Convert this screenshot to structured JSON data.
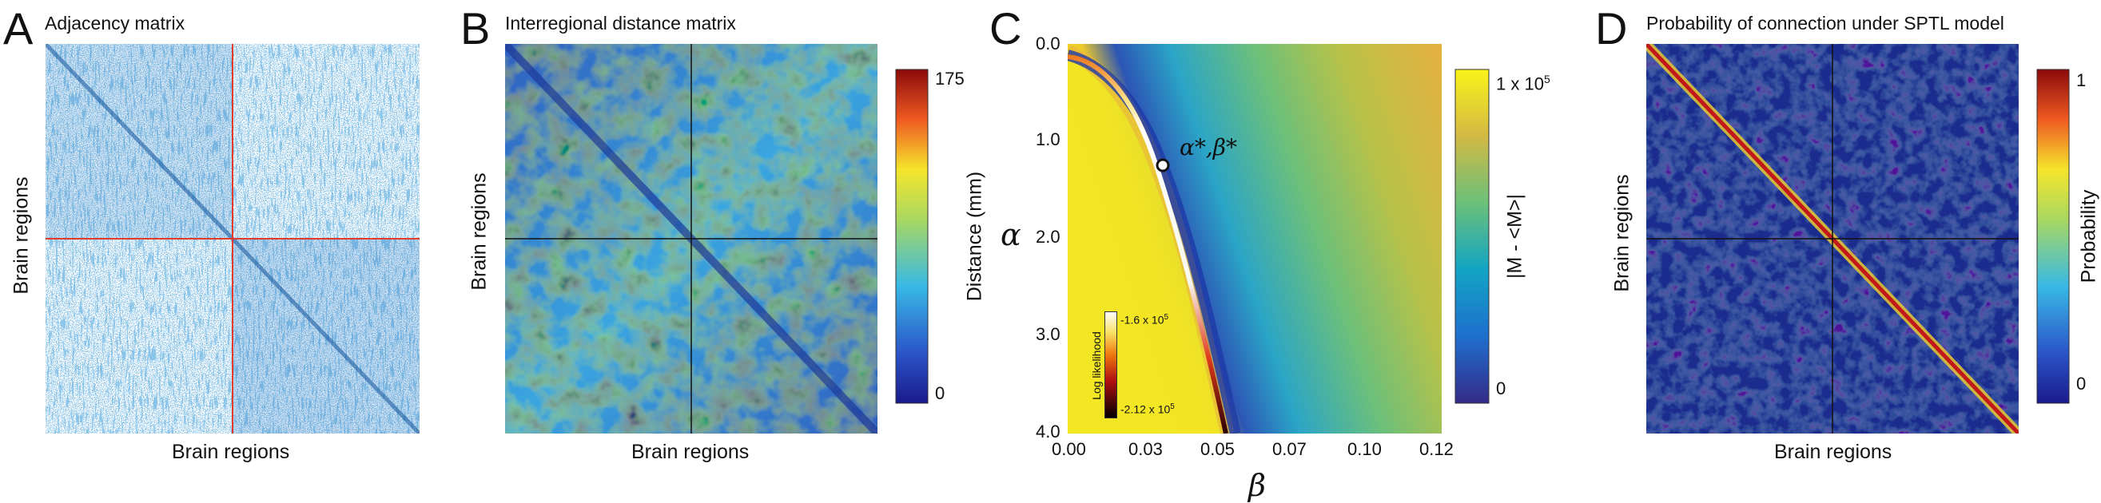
{
  "panels": {
    "A": {
      "letter": "A",
      "title": "Adjacency matrix",
      "xlabel": "Brain regions",
      "ylabel": "Brain regions"
    },
    "B": {
      "letter": "B",
      "title": "Interregional distance matrix",
      "xlabel": "Brain regions",
      "ylabel": "Brain regions",
      "colorbar": {
        "label": "Distance (mm)",
        "max_label": "175",
        "min_label": "0"
      }
    },
    "C": {
      "letter": "C",
      "xlabel": "β",
      "ylabel": "α",
      "x_ticks": [
        "0.00",
        "0.03",
        "0.05",
        "0.07",
        "0.10",
        "0.12"
      ],
      "y_ticks": [
        "0.0",
        "1.0",
        "2.0",
        "3.0",
        "4.0"
      ],
      "annotation": "α*,β*",
      "colorbar": {
        "label": "|M - <M>|",
        "max_label": "1 x 10",
        "max_exp": "5",
        "min_label": "0"
      },
      "inset_colorbar": {
        "label": "Log likelihood",
        "max_label": "-1.6 x 10",
        "max_exp": "5",
        "min_label": "-2.12 x 10",
        "min_exp": "5"
      }
    },
    "D": {
      "letter": "D",
      "title": "Probability of connection under SPTL model",
      "xlabel": "Brain regions",
      "ylabel": "Brain regions",
      "colorbar": {
        "label": "Probability",
        "max_label": "1",
        "min_label": "0"
      }
    }
  },
  "colors": {
    "adjacency_blue": "#2a78c4",
    "hemisphere_divider": "#e23b2e",
    "jet_low": "#1a1a8c",
    "jet_high": "#8b0a0a"
  },
  "chart_data": [
    {
      "type": "heatmap",
      "title": "Adjacency matrix",
      "xlabel": "Brain regions",
      "ylabel": "Brain regions",
      "values": "binary adjacency, dense within-hemisphere diagonal blocks, sparse inter-hemispheric blocks"
    },
    {
      "type": "heatmap",
      "title": "Interregional distance matrix",
      "xlabel": "Brain regions",
      "ylabel": "Brain regions",
      "colorbar_range": [
        0,
        175
      ],
      "colorbar_label": "Distance (mm)"
    },
    {
      "type": "heatmap",
      "xlabel": "β",
      "ylabel": "α",
      "xlim": [
        0.0,
        0.12
      ],
      "ylim": [
        4.0,
        0.0
      ],
      "colorbar_range": [
        0,
        100000
      ],
      "colorbar_label": "|M - <M>|",
      "series": [
        {
          "name": "Log likelihood",
          "x": [
            0.0,
            0.005,
            0.01,
            0.015,
            0.02,
            0.025,
            0.03,
            0.035,
            0.04,
            0.045,
            0.05,
            0.055
          ],
          "y": [
            0.15,
            0.2,
            0.3,
            0.45,
            0.6,
            0.85,
            1.05,
            1.25,
            1.75,
            2.4,
            3.2,
            4.0
          ]
        }
      ],
      "optimum": {
        "label": "α*,β*",
        "beta": 0.035,
        "alpha": 1.25
      },
      "inset_colorbar_range": [
        -212000,
        -160000
      ]
    },
    {
      "type": "heatmap",
      "title": "Probability of connection under SPTL model",
      "xlabel": "Brain regions",
      "ylabel": "Brain regions",
      "colorbar_range": [
        0,
        1
      ],
      "colorbar_label": "Probability"
    }
  ]
}
